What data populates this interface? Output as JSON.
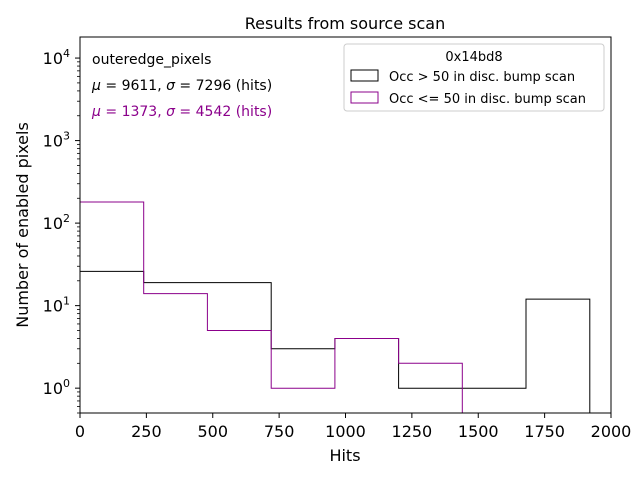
{
  "chart_data": {
    "type": "histogram",
    "title": "Results from source scan",
    "xlabel": "Hits",
    "ylabel": "Number of enabled pixels",
    "xlim": [
      0,
      2000
    ],
    "ylim": [
      0.5,
      18000
    ],
    "yscale": "log",
    "grid": false,
    "x_ticks": [
      0,
      250,
      500,
      750,
      1000,
      1250,
      1500,
      1750,
      2000
    ],
    "y_ticks": [
      {
        "value": 1,
        "base": "10",
        "exp": "0"
      },
      {
        "value": 10,
        "base": "10",
        "exp": "1"
      },
      {
        "value": 100,
        "base": "10",
        "exp": "2"
      },
      {
        "value": 1000,
        "base": "10",
        "exp": "3"
      },
      {
        "value": 10000,
        "base": "10",
        "exp": "4"
      }
    ],
    "bin_edges": [
      0,
      240,
      480,
      720,
      960,
      1200,
      1440,
      1680,
      1920
    ],
    "series": [
      {
        "name": "Occ > 50 in disc. bump scan",
        "color": "#000000",
        "values": [
          26,
          19,
          19,
          3,
          4,
          1,
          1,
          12
        ]
      },
      {
        "name": "Occ <= 50 in disc. bump scan",
        "color": "#8b008b",
        "values": [
          180,
          14,
          5,
          1,
          4,
          2,
          0,
          0
        ]
      }
    ],
    "legend": {
      "title": "0x14bd8",
      "placement": "upper-right"
    },
    "annotations": [
      {
        "text": "outeredge_pixels",
        "color": "#000000"
      },
      {
        "mu": "9611",
        "sigma": "7296",
        "unit": "(hits)",
        "color": "#000000"
      },
      {
        "mu": "1373",
        "sigma": "4542",
        "unit": "(hits)",
        "color": "#8b008b"
      }
    ]
  }
}
